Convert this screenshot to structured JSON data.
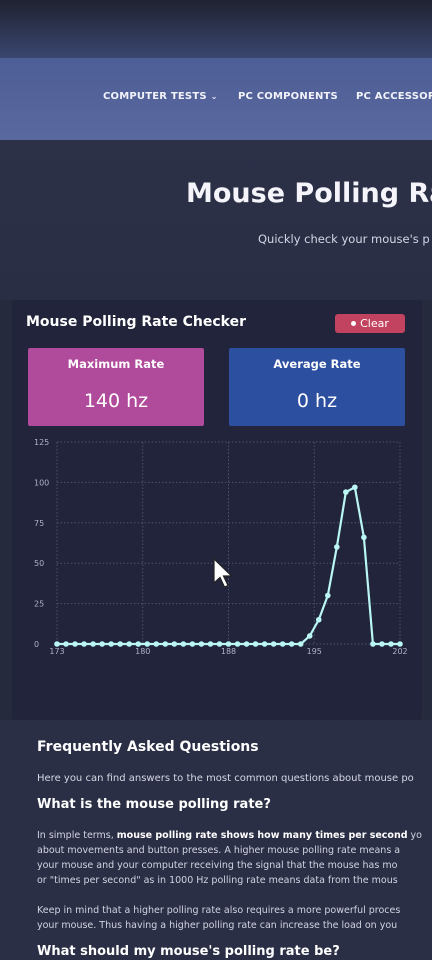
{
  "nav": {
    "items": [
      {
        "label": "COMPUTER TESTS",
        "dropdown": true
      },
      {
        "label": "PC COMPONENTS",
        "dropdown": false
      },
      {
        "label": "PC ACCESSOR",
        "dropdown": false
      }
    ]
  },
  "hero": {
    "title": "Mouse Polling Rat",
    "subtitle": "Quickly check your mouse's p"
  },
  "checker": {
    "title": "Mouse Polling Rate Checker",
    "clear_label": "Clear",
    "max": {
      "label": "Maximum Rate",
      "value": "140 hz"
    },
    "avg": {
      "label": "Average Rate",
      "value": "0 hz"
    }
  },
  "chart_data": {
    "type": "line",
    "x_ticks": [
      "173",
      "180",
      "188",
      "195",
      "202"
    ],
    "y_ticks": [
      "0",
      "25",
      "50",
      "75",
      "100",
      "125"
    ],
    "ylim": [
      0,
      125
    ],
    "series": [
      {
        "values": [
          0,
          0,
          0,
          0,
          0,
          0,
          0,
          0,
          0,
          0,
          0,
          0,
          0,
          0,
          0,
          0,
          0,
          0,
          0,
          0,
          0,
          0,
          0,
          0,
          0,
          0,
          0,
          0,
          5,
          15,
          30,
          60,
          94,
          97,
          66,
          0,
          0,
          0,
          0
        ]
      }
    ],
    "line_color": "#b9f6f4",
    "grid": true
  },
  "faq": {
    "title": "Frequently Asked Questions",
    "intro": "Here you can find answers to the most common questions about mouse po",
    "q1": "What is the mouse polling rate?",
    "p1": {
      "line1_pre": "In simple terms, ",
      "line1_bold": "mouse polling rate shows how many times per second",
      "line1_post": " yo",
      "line2": "about movements and button presses. A higher mouse polling rate means a",
      "line3": "your mouse and your computer receiving the signal that the mouse has mo",
      "line4": "or \"times per second\" as in 1000 Hz polling rate means data from the mous"
    },
    "p2": {
      "line1": "Keep in mind that a higher polling rate also requires a more powerful proces",
      "line2": "your mouse. Thus having a higher polling rate can increase the load on you"
    },
    "q2": "What should my mouse's polling rate be?"
  }
}
